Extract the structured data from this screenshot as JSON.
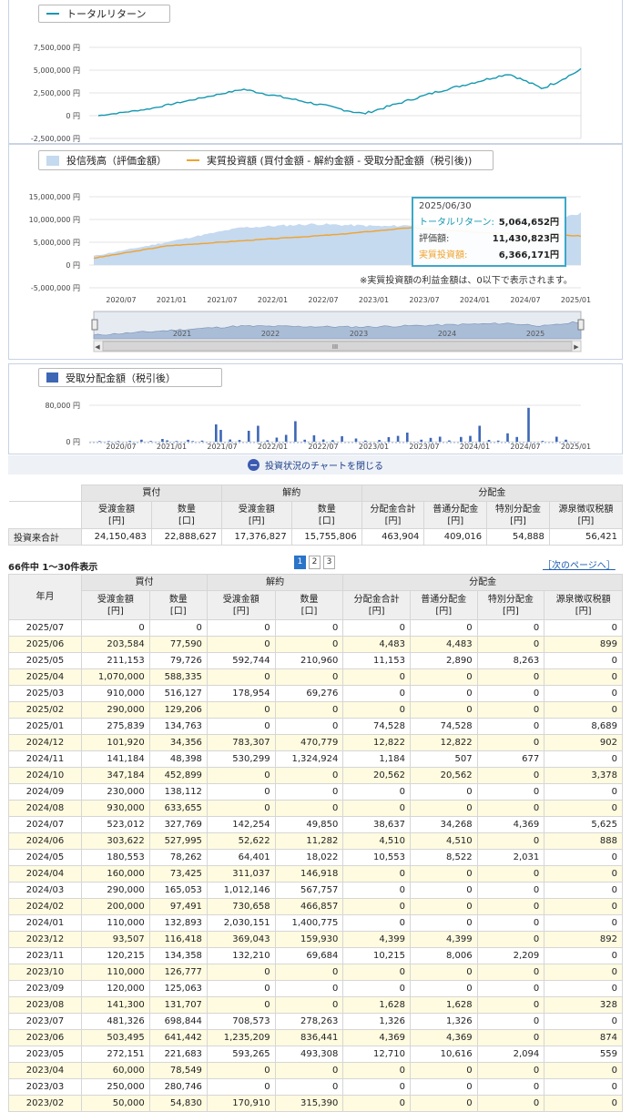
{
  "chart_data": [
    {
      "type": "line",
      "series": [
        {
          "name": "トータルリターン",
          "color": "#1598b0"
        }
      ],
      "y_ticks": [
        "7,500,000 円",
        "5,000,000 円",
        "2,500,000 円",
        "0 円",
        "-2,500,000 円"
      ],
      "ylim": [
        -2500000,
        7500000
      ]
    },
    {
      "type": "area",
      "series": [
        {
          "name": "投信残高（評価金額）",
          "color": "#c5d9ef"
        },
        {
          "name": "実質投資額 (買付金額 - 解約金額 - 受取分配金額（税引後))",
          "color": "#f0a22c"
        }
      ],
      "y_ticks": [
        "15,000,000 円",
        "10,000,000 円",
        "5,000,000 円",
        "0 円",
        "-5,000,000 円"
      ],
      "ylim": [
        -5000000,
        15000000
      ],
      "x_ticks": [
        "2020/07",
        "2021/01",
        "2021/07",
        "2022/01",
        "2022/07",
        "2023/01",
        "2023/07",
        "2024/01",
        "2024/07",
        "2025/01"
      ],
      "note": "※実質投資額の利益金額は、0以下で表示されます。",
      "tooltip": {
        "date": "2025/06/30",
        "rows": [
          {
            "label": "トータルリターン:",
            "value": "5,064,652円",
            "color": "#1598b0"
          },
          {
            "label": "評価額:",
            "value": "11,430,823円",
            "color": "#444"
          },
          {
            "label": "実質投資額:",
            "value": "6,366,171円",
            "color": "#f0a22c"
          }
        ]
      },
      "navigator_ticks": [
        "2021",
        "2022",
        "2023",
        "2024",
        "2025"
      ],
      "scroll_label": "III"
    },
    {
      "type": "bar",
      "series": [
        {
          "name": "受取分配金額（税引後）",
          "color": "#3d67b5"
        }
      ],
      "y_ticks": [
        "80,000 円",
        "0 円"
      ],
      "ylim": [
        0,
        100000
      ],
      "x_ticks": [
        "2020/07",
        "2021/01",
        "2021/07",
        "2022/01",
        "2022/07",
        "2023/01",
        "2023/07",
        "2024/01",
        "2024/07",
        "2025/01"
      ]
    }
  ],
  "close_chart": "投資状況のチャートを閉じる",
  "summary": {
    "groups": [
      "買付",
      "解約",
      "分配金"
    ],
    "cols": [
      "受渡金額\n[円]",
      "数量\n[口]",
      "受渡金額\n[円]",
      "数量\n[口]",
      "分配金合計\n[円]",
      "普通分配金\n[円]",
      "特別分配金\n[円]",
      "源泉徴収税額\n[円]"
    ],
    "row_label": "投資来合計",
    "values": [
      "24,150,483",
      "22,888,627",
      "17,376,827",
      "15,755,806",
      "463,904",
      "409,016",
      "54,888",
      "56,421"
    ]
  },
  "pager": {
    "count_text": "66件中 1〜30件表示",
    "pages": [
      "1",
      "2",
      "3"
    ],
    "next": "［次のページへ］"
  },
  "history": {
    "ym_header": "年月",
    "rows": [
      [
        "2025/07",
        "0",
        "0",
        "0",
        "0",
        "0",
        "0",
        "0",
        "0"
      ],
      [
        "2025/06",
        "203,584",
        "77,590",
        "0",
        "0",
        "4,483",
        "4,483",
        "0",
        "899"
      ],
      [
        "2025/05",
        "211,153",
        "79,726",
        "592,744",
        "210,960",
        "11,153",
        "2,890",
        "8,263",
        "0"
      ],
      [
        "2025/04",
        "1,070,000",
        "588,335",
        "0",
        "0",
        "0",
        "0",
        "0",
        "0"
      ],
      [
        "2025/03",
        "910,000",
        "516,127",
        "178,954",
        "69,276",
        "0",
        "0",
        "0",
        "0"
      ],
      [
        "2025/02",
        "290,000",
        "129,206",
        "0",
        "0",
        "0",
        "0",
        "0",
        "0"
      ],
      [
        "2025/01",
        "275,839",
        "134,763",
        "0",
        "0",
        "74,528",
        "74,528",
        "0",
        "8,689"
      ],
      [
        "2024/12",
        "101,920",
        "34,356",
        "783,307",
        "470,779",
        "12,822",
        "12,822",
        "0",
        "902"
      ],
      [
        "2024/11",
        "141,184",
        "48,398",
        "530,299",
        "1,324,924",
        "1,184",
        "507",
        "677",
        "0"
      ],
      [
        "2024/10",
        "347,184",
        "452,899",
        "0",
        "0",
        "20,562",
        "20,562",
        "0",
        "3,378"
      ],
      [
        "2024/09",
        "230,000",
        "138,112",
        "0",
        "0",
        "0",
        "0",
        "0",
        "0"
      ],
      [
        "2024/08",
        "930,000",
        "633,655",
        "0",
        "0",
        "0",
        "0",
        "0",
        "0"
      ],
      [
        "2024/07",
        "523,012",
        "327,769",
        "142,254",
        "49,850",
        "38,637",
        "34,268",
        "4,369",
        "5,625"
      ],
      [
        "2024/06",
        "303,622",
        "527,995",
        "52,622",
        "11,282",
        "4,510",
        "4,510",
        "0",
        "888"
      ],
      [
        "2024/05",
        "180,553",
        "78,262",
        "64,401",
        "18,022",
        "10,553",
        "8,522",
        "2,031",
        "0"
      ],
      [
        "2024/04",
        "160,000",
        "73,425",
        "311,037",
        "146,918",
        "0",
        "0",
        "0",
        "0"
      ],
      [
        "2024/03",
        "290,000",
        "165,053",
        "1,012,146",
        "567,757",
        "0",
        "0",
        "0",
        "0"
      ],
      [
        "2024/02",
        "200,000",
        "97,491",
        "730,658",
        "466,857",
        "0",
        "0",
        "0",
        "0"
      ],
      [
        "2024/01",
        "110,000",
        "132,893",
        "2,030,151",
        "1,400,775",
        "0",
        "0",
        "0",
        "0"
      ],
      [
        "2023/12",
        "93,507",
        "116,418",
        "369,043",
        "159,930",
        "4,399",
        "4,399",
        "0",
        "892"
      ],
      [
        "2023/11",
        "120,215",
        "134,358",
        "132,210",
        "69,684",
        "10,215",
        "8,006",
        "2,209",
        "0"
      ],
      [
        "2023/10",
        "110,000",
        "126,777",
        "0",
        "0",
        "0",
        "0",
        "0",
        "0"
      ],
      [
        "2023/09",
        "120,000",
        "125,063",
        "0",
        "0",
        "0",
        "0",
        "0",
        "0"
      ],
      [
        "2023/08",
        "141,300",
        "131,707",
        "0",
        "0",
        "1,628",
        "1,628",
        "0",
        "328"
      ],
      [
        "2023/07",
        "481,326",
        "698,844",
        "708,573",
        "278,263",
        "1,326",
        "1,326",
        "0",
        "0"
      ],
      [
        "2023/06",
        "503,495",
        "641,442",
        "1,235,209",
        "836,441",
        "4,369",
        "4,369",
        "0",
        "874"
      ],
      [
        "2023/05",
        "272,151",
        "221,683",
        "593,265",
        "493,308",
        "12,710",
        "10,616",
        "2,094",
        "559"
      ],
      [
        "2023/04",
        "60,000",
        "78,549",
        "0",
        "0",
        "0",
        "0",
        "0",
        "0"
      ],
      [
        "2023/03",
        "250,000",
        "280,746",
        "0",
        "0",
        "0",
        "0",
        "0",
        "0"
      ],
      [
        "2023/02",
        "50,000",
        "54,830",
        "170,910",
        "315,390",
        "0",
        "0",
        "0",
        "0"
      ]
    ]
  }
}
